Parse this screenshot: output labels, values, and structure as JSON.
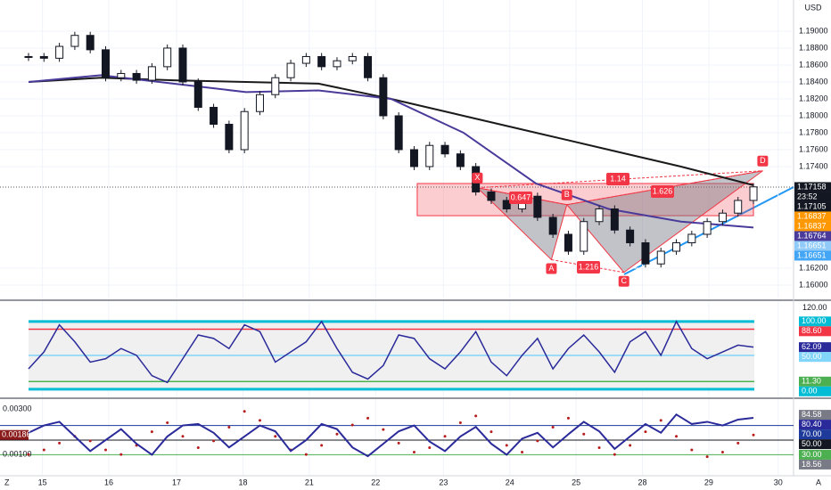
{
  "chart_data": {
    "type": "candlestick",
    "currency": "USD",
    "xlim": [
      -1.85,
      49.6
    ],
    "xticks": [
      {
        "value": 0.9,
        "label": "15"
      },
      {
        "value": 5.2,
        "label": "16"
      },
      {
        "value": 9.6,
        "label": "17"
      },
      {
        "value": 13.9,
        "label": "18"
      },
      {
        "value": 18.2,
        "label": "21"
      },
      {
        "value": 22.5,
        "label": "22"
      },
      {
        "value": 26.9,
        "label": "23"
      },
      {
        "value": 31.2,
        "label": "24"
      },
      {
        "value": 35.5,
        "label": "25"
      },
      {
        "value": 39.8,
        "label": "28"
      },
      {
        "value": 44.1,
        "label": "29"
      },
      {
        "value": 48.6,
        "label": "30"
      }
    ],
    "corner_left": "Z",
    "corner_right": "A",
    "ylim": [
      1.15842,
      1.19368
    ],
    "yticks": [
      {
        "value": 1.16,
        "label": "1.16000"
      },
      {
        "value": 1.162,
        "label": "1.16200"
      },
      {
        "value": 1.174,
        "label": "1.17400"
      },
      {
        "value": 1.176,
        "label": "1.17600"
      },
      {
        "value": 1.178,
        "label": "1.17800"
      },
      {
        "value": 1.18,
        "label": "1.18000"
      },
      {
        "value": 1.182,
        "label": "1.18200"
      },
      {
        "value": 1.184,
        "label": "1.18400"
      },
      {
        "value": 1.186,
        "label": "1.18600"
      },
      {
        "value": 1.188,
        "label": "1.18800"
      },
      {
        "value": 1.19,
        "label": "1.19000"
      }
    ],
    "grid": true,
    "closes": [
      1.187,
      1.1868,
      1.1882,
      1.1895,
      1.1878,
      1.1845,
      1.185,
      1.1842,
      1.1858,
      1.188,
      1.184,
      1.181,
      1.179,
      1.176,
      1.1805,
      1.1825,
      1.1845,
      1.1862,
      1.187,
      1.1858,
      1.1865,
      1.187,
      1.1845,
      1.18,
      1.176,
      1.174,
      1.1765,
      1.1755,
      1.174,
      1.171,
      1.17,
      1.169,
      1.1705,
      1.168,
      1.166,
      1.164,
      1.1675,
      1.169,
      1.1665,
      1.165,
      1.1625,
      1.164,
      1.165,
      1.166,
      1.1675,
      1.1685,
      1.17,
      1.1716
    ],
    "series": [
      {
        "color": "#1a1a1a",
        "x": [
          0,
          4.7,
          9.4,
          14.1,
          18.8,
          23.5,
          28.2,
          32.9,
          37.6,
          42.3,
          47
        ],
        "values": [
          1.184,
          1.1845,
          1.1842,
          1.184,
          1.1838,
          1.182,
          1.18,
          1.178,
          1.176,
          1.174,
          1.1718
        ]
      },
      {
        "color": "#4a3a9a",
        "x": [
          0,
          4.7,
          9.4,
          14.1,
          18.8,
          23.5,
          28.2,
          32.9,
          37.6,
          42.3,
          47
        ],
        "values": [
          1.184,
          1.1848,
          1.1838,
          1.1828,
          1.183,
          1.182,
          1.178,
          1.172,
          1.169,
          1.1675,
          1.1668
        ]
      }
    ],
    "zone": {
      "x": [
        25.2,
        47
      ],
      "values": [
        1.1682,
        1.172
      ]
    },
    "pattern": {
      "x": [
        29.1,
        33.9,
        34.9,
        38.6,
        47.6
      ],
      "values": [
        1.1715,
        1.163,
        1.1695,
        1.1615,
        1.1735
      ],
      "labels": [
        "X",
        "A",
        "B",
        "C",
        "D"
      ],
      "ratios": [
        "0.647",
        "1.14",
        "1.626",
        "1.216"
      ]
    },
    "last_price": 1.17158,
    "countdown": "23:52",
    "badges": [
      {
        "value": 1.17158,
        "color": "#131722"
      },
      {
        "value": 1.17105,
        "color": "#131722"
      },
      {
        "value": 1.16837,
        "color": "#ff9800"
      },
      {
        "value": 1.16837,
        "color": "#ff9800"
      },
      {
        "value": 1.16764,
        "color": "#4a3a9a"
      },
      {
        "value": 1.16651,
        "color": "#90caf9"
      },
      {
        "value": 1.16651,
        "color": "#42a5f5"
      }
    ],
    "oscillator": {
      "ylim": [
        -12,
        130
      ],
      "yticks": [
        {
          "value": 120,
          "label": "120.00"
        }
      ],
      "color": "#2a2a9a",
      "values": [
        30,
        55,
        95,
        70,
        40,
        45,
        60,
        50,
        20,
        10,
        45,
        80,
        75,
        60,
        95,
        85,
        40,
        55,
        70,
        100,
        60,
        25,
        15,
        35,
        80,
        75,
        45,
        30,
        55,
        85,
        40,
        20,
        50,
        75,
        30,
        60,
        80,
        55,
        25,
        70,
        85,
        50,
        100,
        60,
        45,
        55,
        65,
        62.09
      ],
      "badges": [
        {
          "value": 100,
          "label": "100.00",
          "color": "#00bcd4",
          "level": true
        },
        {
          "value": 88.6,
          "label": "88.60",
          "color": "#f23645",
          "level": true
        },
        {
          "value": 62.09,
          "label": "62.09",
          "color": "#2a2a9a"
        },
        {
          "value": 50,
          "label": "50.00",
          "color": "#81d4fa",
          "level": true
        },
        {
          "value": 11.3,
          "label": "11.30",
          "color": "#4caf50",
          "level": true
        },
        {
          "value": 0,
          "label": "0.00",
          "color": "#00bcd4",
          "level": true
        }
      ]
    },
    "indicator": {
      "ylim": [
        2.5,
        106
      ],
      "color": "#2a2a9a",
      "values": [
        60,
        70,
        75,
        55,
        35,
        50,
        65,
        45,
        30,
        55,
        70,
        72,
        60,
        40,
        55,
        70,
        62,
        35,
        50,
        72,
        65,
        40,
        28,
        45,
        62,
        70,
        48,
        35,
        55,
        68,
        45,
        30,
        52,
        60,
        40,
        58,
        75,
        62,
        38,
        55,
        72,
        60,
        85,
        72,
        75,
        70,
        78,
        80.4
      ],
      "badges": [
        {
          "value": 84.58,
          "label": "84.58",
          "color": "#787b86"
        },
        {
          "value": 80.4,
          "label": "80.40",
          "color": "#2a2a9a"
        },
        {
          "value": 70,
          "label": "70.00",
          "color": "#1e3a9a",
          "level": true
        },
        {
          "value": 50,
          "label": "50.00",
          "color": "#131722",
          "level": true
        },
        {
          "value": 30,
          "label": "30.00",
          "color": "#4caf50",
          "level": true
        },
        {
          "value": 18.56,
          "label": "18.56",
          "color": "#787b86"
        }
      ],
      "left_ylim": [
        0.0001,
        0.00344
      ],
      "left_color": "#b71c1c",
      "left_yticks": [
        {
          "value": 0.003,
          "label": "0.00300"
        },
        {
          "value": 0.001,
          "label": "0.00100"
        }
      ],
      "left_values": [
        0.001,
        0.0012,
        0.0015,
        0.0018,
        0.0016,
        0.0012,
        0.001,
        0.0014,
        0.002,
        0.0024,
        0.0018,
        0.0013,
        0.0016,
        0.0022,
        0.0029,
        0.0025,
        0.0018,
        0.0012,
        0.001,
        0.0014,
        0.0019,
        0.0023,
        0.0026,
        0.0021,
        0.0015,
        0.0011,
        0.0013,
        0.0018,
        0.0024,
        0.0027,
        0.002,
        0.0014,
        0.0011,
        0.0016,
        0.0022,
        0.0026,
        0.0019,
        0.0013,
        0.001,
        0.0014,
        0.002,
        0.0025,
        0.0018,
        0.0012,
        0.0009,
        0.0011,
        0.0015,
        0.00186
      ],
      "left_badge": {
        "value": 0.00186,
        "label": "0.00186",
        "color": "#8b1a1a"
      }
    }
  }
}
